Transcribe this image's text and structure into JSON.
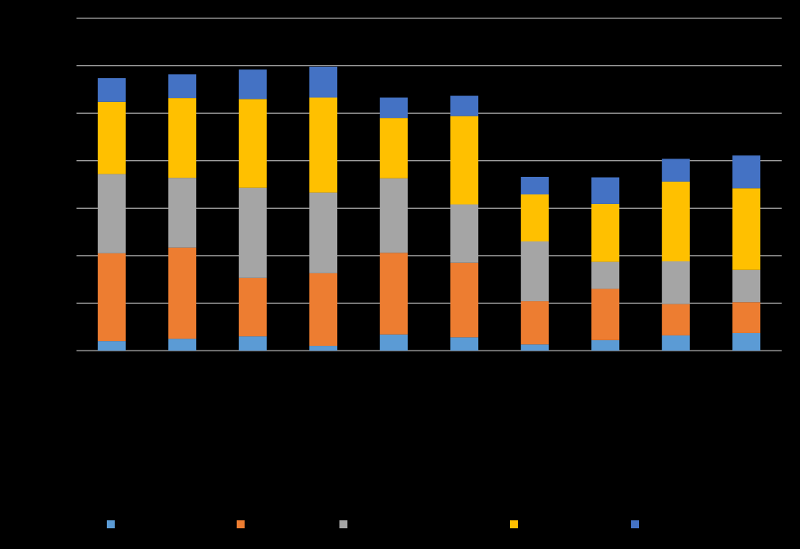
{
  "chart_data": {
    "type": "bar",
    "stacked": true,
    "title": "",
    "xlabel": "",
    "ylabel": "",
    "categories": [
      "",
      "",
      "",
      "",
      "",
      "",
      "",
      "",
      "",
      ""
    ],
    "ylim": [
      0,
      7
    ],
    "gridlines": [
      0,
      1,
      2,
      3,
      4,
      5,
      6,
      7
    ],
    "grid": true,
    "legend_position": "bottom",
    "background": "#000000",
    "gridline_color": "#d9d9d9",
    "series": [
      {
        "name": "",
        "color": "#5b9bd5",
        "values": [
          0.2,
          0.25,
          0.3,
          0.1,
          0.34,
          0.28,
          0.13,
          0.22,
          0.32,
          0.37
        ]
      },
      {
        "name": "",
        "color": "#ed7d31",
        "values": [
          1.85,
          1.92,
          1.23,
          1.53,
          1.72,
          1.57,
          0.91,
          1.08,
          0.66,
          0.65
        ]
      },
      {
        "name": "",
        "color": "#a5a5a5",
        "values": [
          1.67,
          1.47,
          1.9,
          1.7,
          1.57,
          1.23,
          1.26,
          0.57,
          0.9,
          0.68
        ]
      },
      {
        "name": "",
        "color": "#ffc000",
        "values": [
          1.52,
          1.68,
          1.87,
          2.0,
          1.27,
          1.86,
          0.99,
          1.22,
          1.68,
          1.72
        ]
      },
      {
        "name": "",
        "color": "#4472c4",
        "values": [
          0.5,
          0.5,
          0.62,
          0.65,
          0.43,
          0.43,
          0.37,
          0.56,
          0.48,
          0.69
        ]
      }
    ]
  }
}
